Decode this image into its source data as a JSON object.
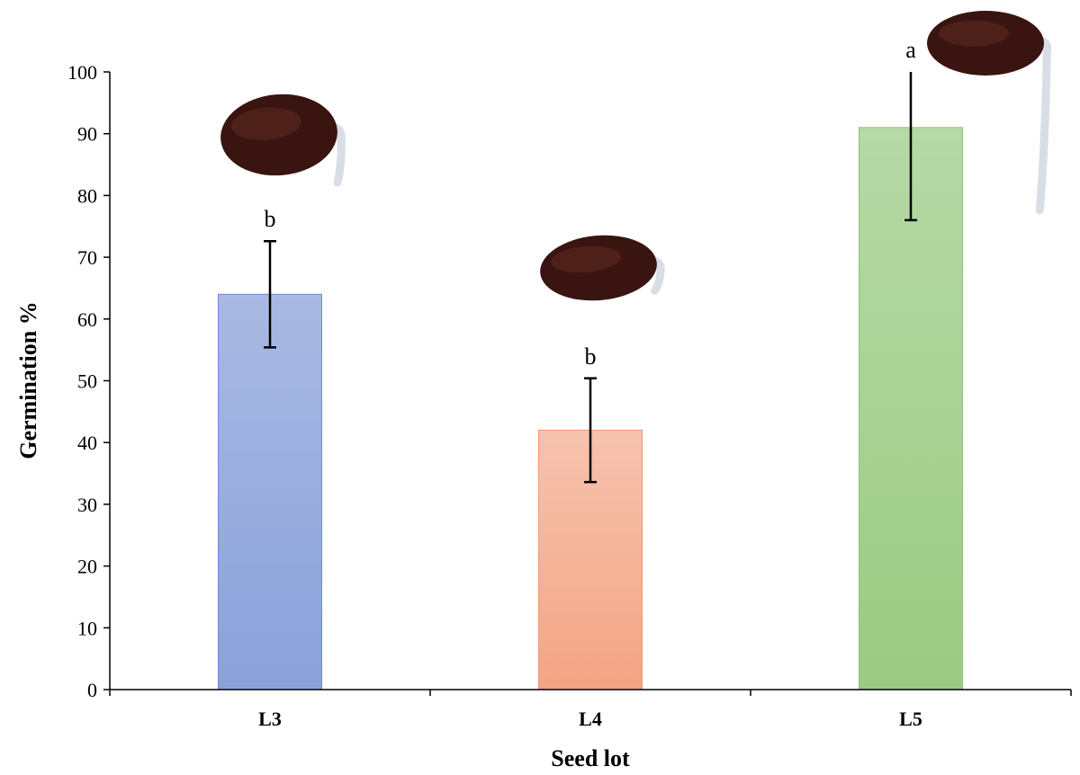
{
  "chart_data": {
    "type": "bar",
    "xlabel": "Seed lot",
    "ylabel": "Germination %",
    "ylim": [
      0,
      100
    ],
    "yticks": [
      0,
      10,
      20,
      30,
      40,
      50,
      60,
      70,
      80,
      90,
      100
    ],
    "categories": [
      "L3",
      "L4",
      "L5"
    ],
    "values": [
      64,
      42,
      91
    ],
    "errors": [
      8.6,
      8.4,
      15
    ],
    "significance_letters": [
      "b",
      "b",
      "a"
    ],
    "colors": [
      {
        "fill_top": "#a9b9e2",
        "fill_bottom": "#8aa1db",
        "stroke": "#6f8bd4"
      },
      {
        "fill_top": "#f6c3ae",
        "fill_bottom": "#f4a484",
        "stroke": "#ef9a72"
      },
      {
        "fill_top": "#b6d9a6",
        "fill_bottom": "#9bcb82",
        "stroke": "#8cc179"
      }
    ],
    "grid": false,
    "legend": "none",
    "images": [
      "germinating-seed-icon",
      "germinating-seed-icon",
      "germinating-seed-icon"
    ]
  }
}
